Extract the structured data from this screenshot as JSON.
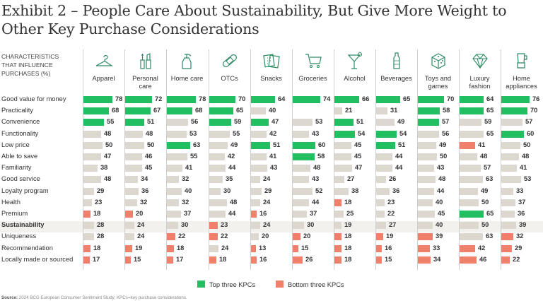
{
  "title": "Exhibit 2 – People Care About Sustainability, But Give More Weight to Other Key Purchase Considerations",
  "row_header": [
    "Characteristics",
    "that influence",
    "purchases (%)"
  ],
  "colors": {
    "top": "#21bf61",
    "bottom": "#f07f6b",
    "neutral": "#dcd7cf",
    "icon": "#2d8a63",
    "highlight_row": "#f3f1ee"
  },
  "legend": {
    "top_label": "Top three KPCs",
    "bottom_label": "Bottom three KPCs"
  },
  "source": {
    "label": "Source:",
    "text": "2024 BCG European Consumer Sentiment Study; KPCs=key purchase considerations."
  },
  "chart_data": {
    "type": "table",
    "title": "Exhibit 2 – People Care About Sustainability, But Give More Weight to Other Key Purchase Considerations",
    "unit": "%",
    "highlight_row": "Sustainability",
    "categories": [
      "Apparel",
      "Personal care",
      "Home care",
      "OTCs",
      "Snacks",
      "Groceries",
      "Alcohol",
      "Beverages",
      "Toys and games",
      "Luxury fashion",
      "Home appliances"
    ],
    "category_icons": [
      "hanger-icon",
      "cosmetics-icon",
      "spray-bottle-icon",
      "bandage-icon",
      "crackers-icon",
      "shopping-cart-icon",
      "cocktail-icon",
      "water-bottle-icon",
      "dice-icon",
      "diamond-icon",
      "blender-icon"
    ],
    "rows": [
      {
        "label": "Good value for money",
        "values": [
          78,
          72,
          78,
          70,
          64,
          74,
          66,
          65,
          70,
          64,
          76
        ],
        "class": [
          "t",
          "t",
          "t",
          "t",
          "t",
          "t",
          "t",
          "t",
          "t",
          "t",
          "t"
        ]
      },
      {
        "label": "Practicality",
        "values": [
          68,
          67,
          68,
          65,
          40,
          null,
          21,
          31,
          58,
          65,
          70
        ],
        "class": [
          "t",
          "t",
          "t",
          "t",
          "n",
          "n",
          "n",
          "n",
          "t",
          "t",
          "t"
        ]
      },
      {
        "label": "Convenience",
        "values": [
          55,
          51,
          56,
          59,
          47,
          53,
          51,
          49,
          57,
          59,
          57
        ],
        "class": [
          "t",
          "t",
          "n",
          "t",
          "t",
          "n",
          "t",
          "n",
          "t",
          "n",
          "n"
        ]
      },
      {
        "label": "Functionality",
        "values": [
          48,
          48,
          53,
          55,
          42,
          43,
          54,
          54,
          56,
          65,
          60
        ],
        "class": [
          "n",
          "n",
          "n",
          "n",
          "n",
          "n",
          "t",
          "t",
          "n",
          "n",
          "t"
        ]
      },
      {
        "label": "Low price",
        "values": [
          50,
          50,
          63,
          49,
          51,
          60,
          45,
          51,
          49,
          41,
          50
        ],
        "class": [
          "n",
          "n",
          "t",
          "n",
          "t",
          "t",
          "n",
          "t",
          "n",
          "b",
          "n"
        ]
      },
      {
        "label": "Able to save",
        "values": [
          47,
          46,
          55,
          42,
          41,
          58,
          45,
          44,
          50,
          48,
          48
        ],
        "class": [
          "n",
          "n",
          "n",
          "n",
          "n",
          "t",
          "n",
          "n",
          "n",
          "n",
          "n"
        ]
      },
      {
        "label": "Familiarity",
        "values": [
          38,
          45,
          41,
          44,
          43,
          48,
          47,
          44,
          43,
          57,
          41
        ],
        "class": [
          "n",
          "n",
          "n",
          "n",
          "n",
          "n",
          "n",
          "n",
          "n",
          "n",
          "n"
        ]
      },
      {
        "label": "Good service",
        "values": [
          48,
          34,
          32,
          35,
          24,
          43,
          27,
          26,
          48,
          63,
          53
        ],
        "class": [
          "n",
          "n",
          "n",
          "n",
          "n",
          "n",
          "n",
          "n",
          "n",
          "n",
          "n"
        ]
      },
      {
        "label": "Loyalty program",
        "values": [
          29,
          36,
          40,
          30,
          29,
          52,
          38,
          36,
          44,
          49,
          33
        ],
        "class": [
          "n",
          "n",
          "n",
          "n",
          "n",
          "n",
          "n",
          "n",
          "n",
          "n",
          "n"
        ]
      },
      {
        "label": "Health",
        "values": [
          23,
          32,
          32,
          48,
          24,
          44,
          18,
          23,
          40,
          50,
          37
        ],
        "class": [
          "n",
          "n",
          "n",
          "n",
          "n",
          "n",
          "b",
          "n",
          "n",
          "n",
          "n"
        ]
      },
      {
        "label": "Premium",
        "values": [
          18,
          20,
          37,
          44,
          16,
          37,
          25,
          22,
          45,
          65,
          36
        ],
        "class": [
          "b",
          "b",
          "n",
          "n",
          "b",
          "n",
          "n",
          "n",
          "n",
          "t",
          "n"
        ]
      },
      {
        "label": "Sustainability",
        "values": [
          28,
          24,
          30,
          23,
          24,
          30,
          19,
          27,
          40,
          50,
          39
        ],
        "class": [
          "n",
          "n",
          "n",
          "b",
          "n",
          "n",
          "n",
          "n",
          "n",
          "n",
          "n"
        ]
      },
      {
        "label": "Uniqueness",
        "values": [
          28,
          24,
          22,
          22,
          20,
          20,
          18,
          19,
          39,
          63,
          32
        ],
        "class": [
          "n",
          "n",
          "b",
          "b",
          "n",
          "b",
          "b",
          "b",
          "b",
          "n",
          "b"
        ]
      },
      {
        "label": "Recommendation",
        "values": [
          18,
          19,
          18,
          24,
          13,
          15,
          18,
          16,
          33,
          42,
          29
        ],
        "class": [
          "b",
          "b",
          "b",
          "n",
          "b",
          "b",
          "b",
          "b",
          "b",
          "b",
          "b"
        ]
      },
      {
        "label": "Locally made or sourced",
        "values": [
          17,
          15,
          17,
          18,
          16,
          26,
          18,
          15,
          34,
          46,
          22
        ],
        "class": [
          "b",
          "b",
          "b",
          "b",
          "b",
          "b",
          "b",
          "b",
          "b",
          "b",
          "b"
        ]
      }
    ],
    "legend": [
      "Top three KPCs",
      "Bottom three KPCs"
    ],
    "legend_position": "bottom-center",
    "grid": false
  }
}
